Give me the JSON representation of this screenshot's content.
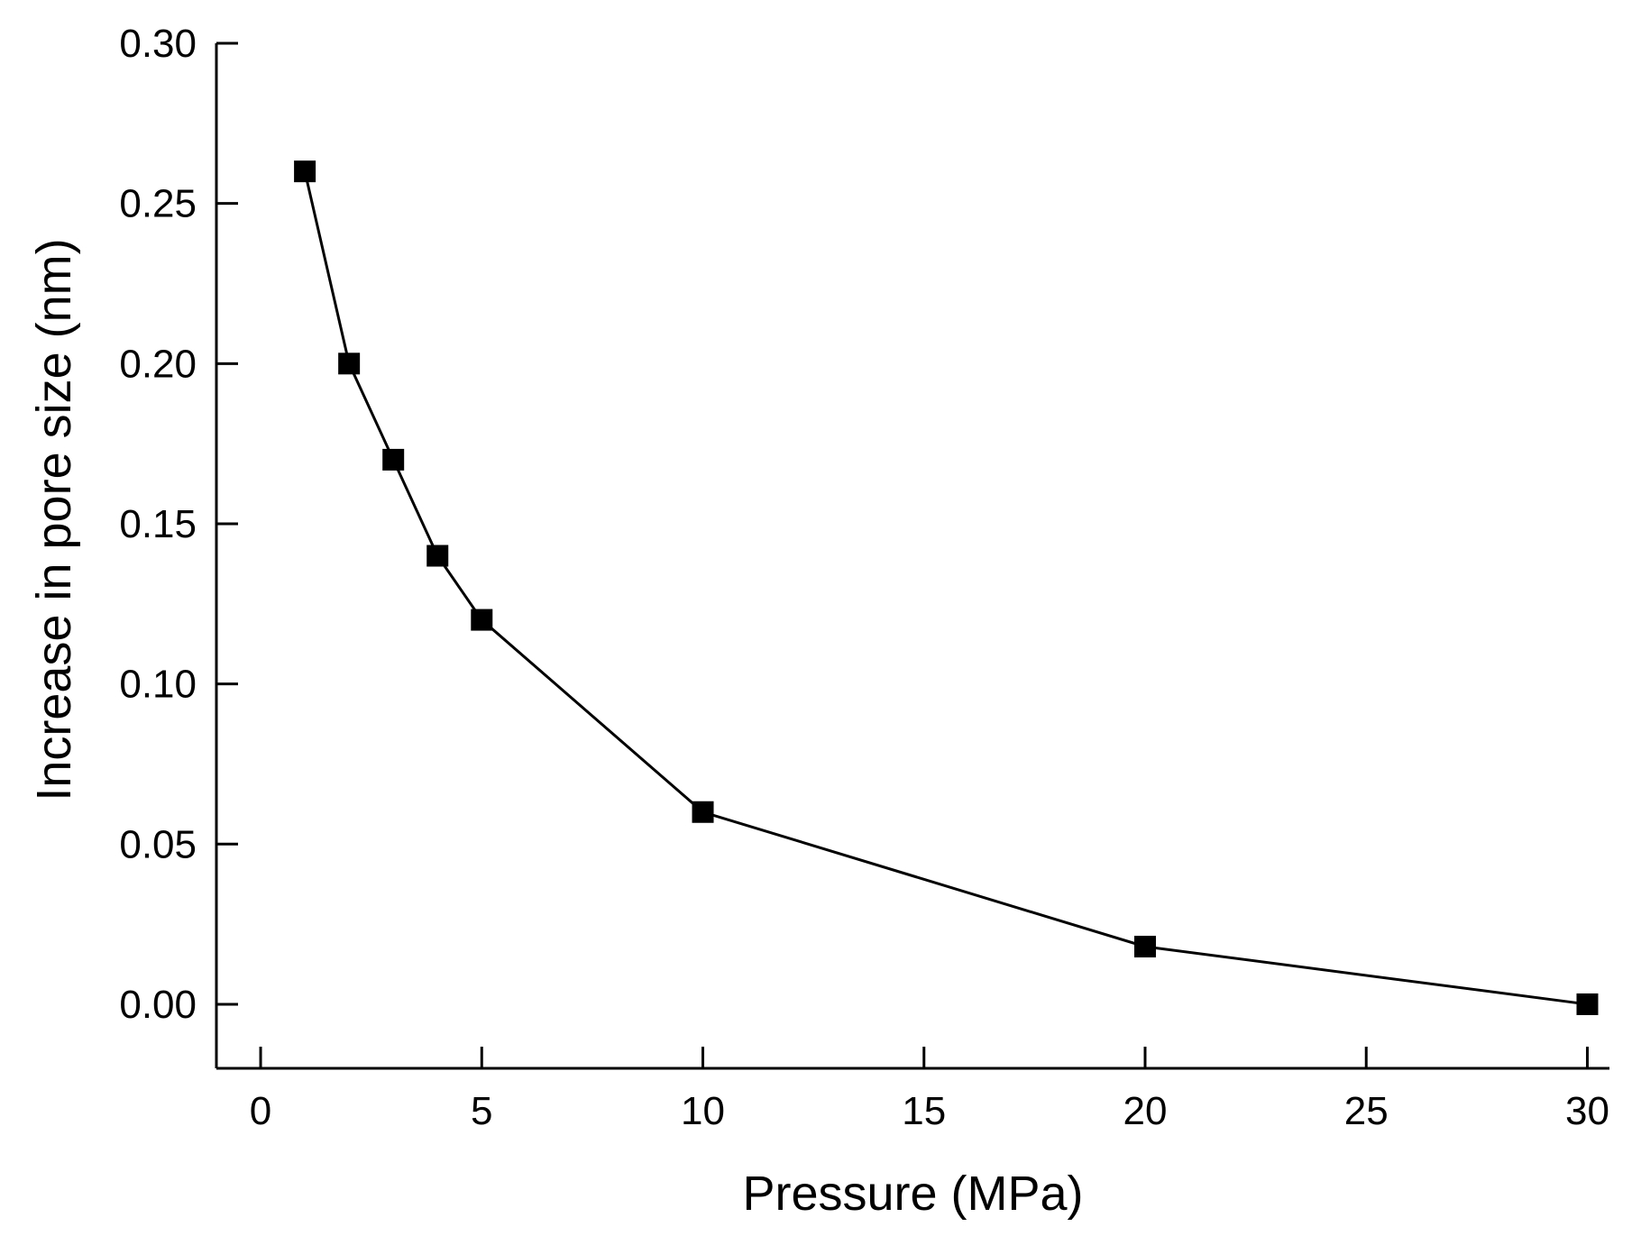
{
  "chart_data": {
    "type": "line",
    "title": "",
    "xlabel": "Pressure (MPa)",
    "ylabel": "Increase in pore size (nm)",
    "xlim": [
      -1,
      30.5
    ],
    "ylim": [
      -0.02,
      0.3
    ],
    "xticks": [
      0,
      5,
      10,
      15,
      20,
      25,
      30
    ],
    "yticks": [
      0.0,
      0.05,
      0.1,
      0.15,
      0.2,
      0.25,
      0.3
    ],
    "xtick_labels": [
      "0",
      "5",
      "10",
      "15",
      "20",
      "25",
      "30"
    ],
    "ytick_labels": [
      "0.00",
      "0.05",
      "0.10",
      "0.15",
      "0.20",
      "0.25",
      "0.30"
    ],
    "grid": false,
    "legend": "none",
    "series": [
      {
        "name": "Increase in pore size",
        "marker": "square",
        "color": "#000000",
        "x": [
          1,
          2,
          3,
          4,
          5,
          10,
          20,
          30
        ],
        "y": [
          0.26,
          0.2,
          0.17,
          0.14,
          0.12,
          0.06,
          0.018,
          0.0
        ]
      }
    ]
  }
}
